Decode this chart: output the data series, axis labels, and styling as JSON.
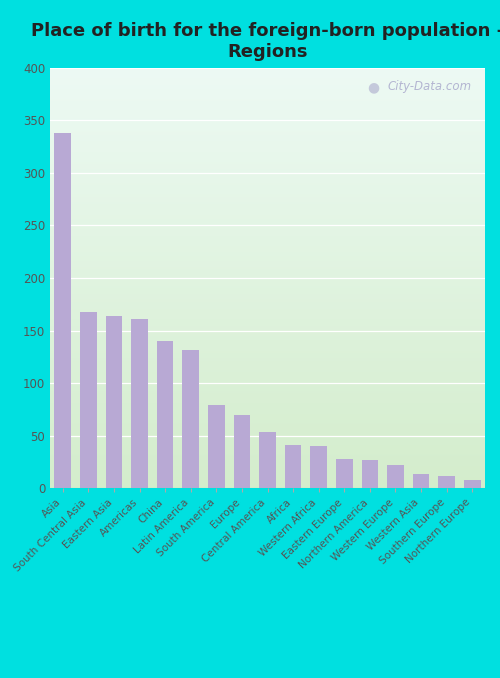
{
  "title": "Place of birth for the foreign-born population -\nRegions",
  "categories": [
    "Asia",
    "South Central Asia",
    "Eastern Asia",
    "Americas",
    "China",
    "Latin America",
    "South America",
    "Europe",
    "Central America",
    "Africa",
    "Western Africa",
    "Eastern Europe",
    "Northern America",
    "Western Europe",
    "Western Asia",
    "Southern Europe",
    "Northern Europe"
  ],
  "values": [
    338,
    168,
    164,
    161,
    140,
    131,
    79,
    70,
    53,
    41,
    40,
    28,
    27,
    22,
    13,
    12,
    8
  ],
  "bar_color": "#b8a9d4",
  "grad_top": "#edfaf4",
  "grad_bottom": "#d4edcc",
  "outer_bg_color": "#00e0e0",
  "ylim": [
    0,
    400
  ],
  "yticks": [
    0,
    50,
    100,
    150,
    200,
    250,
    300,
    350,
    400
  ],
  "title_fontsize": 13,
  "tick_label_fontsize": 7.5,
  "watermark": "City-Data.com"
}
